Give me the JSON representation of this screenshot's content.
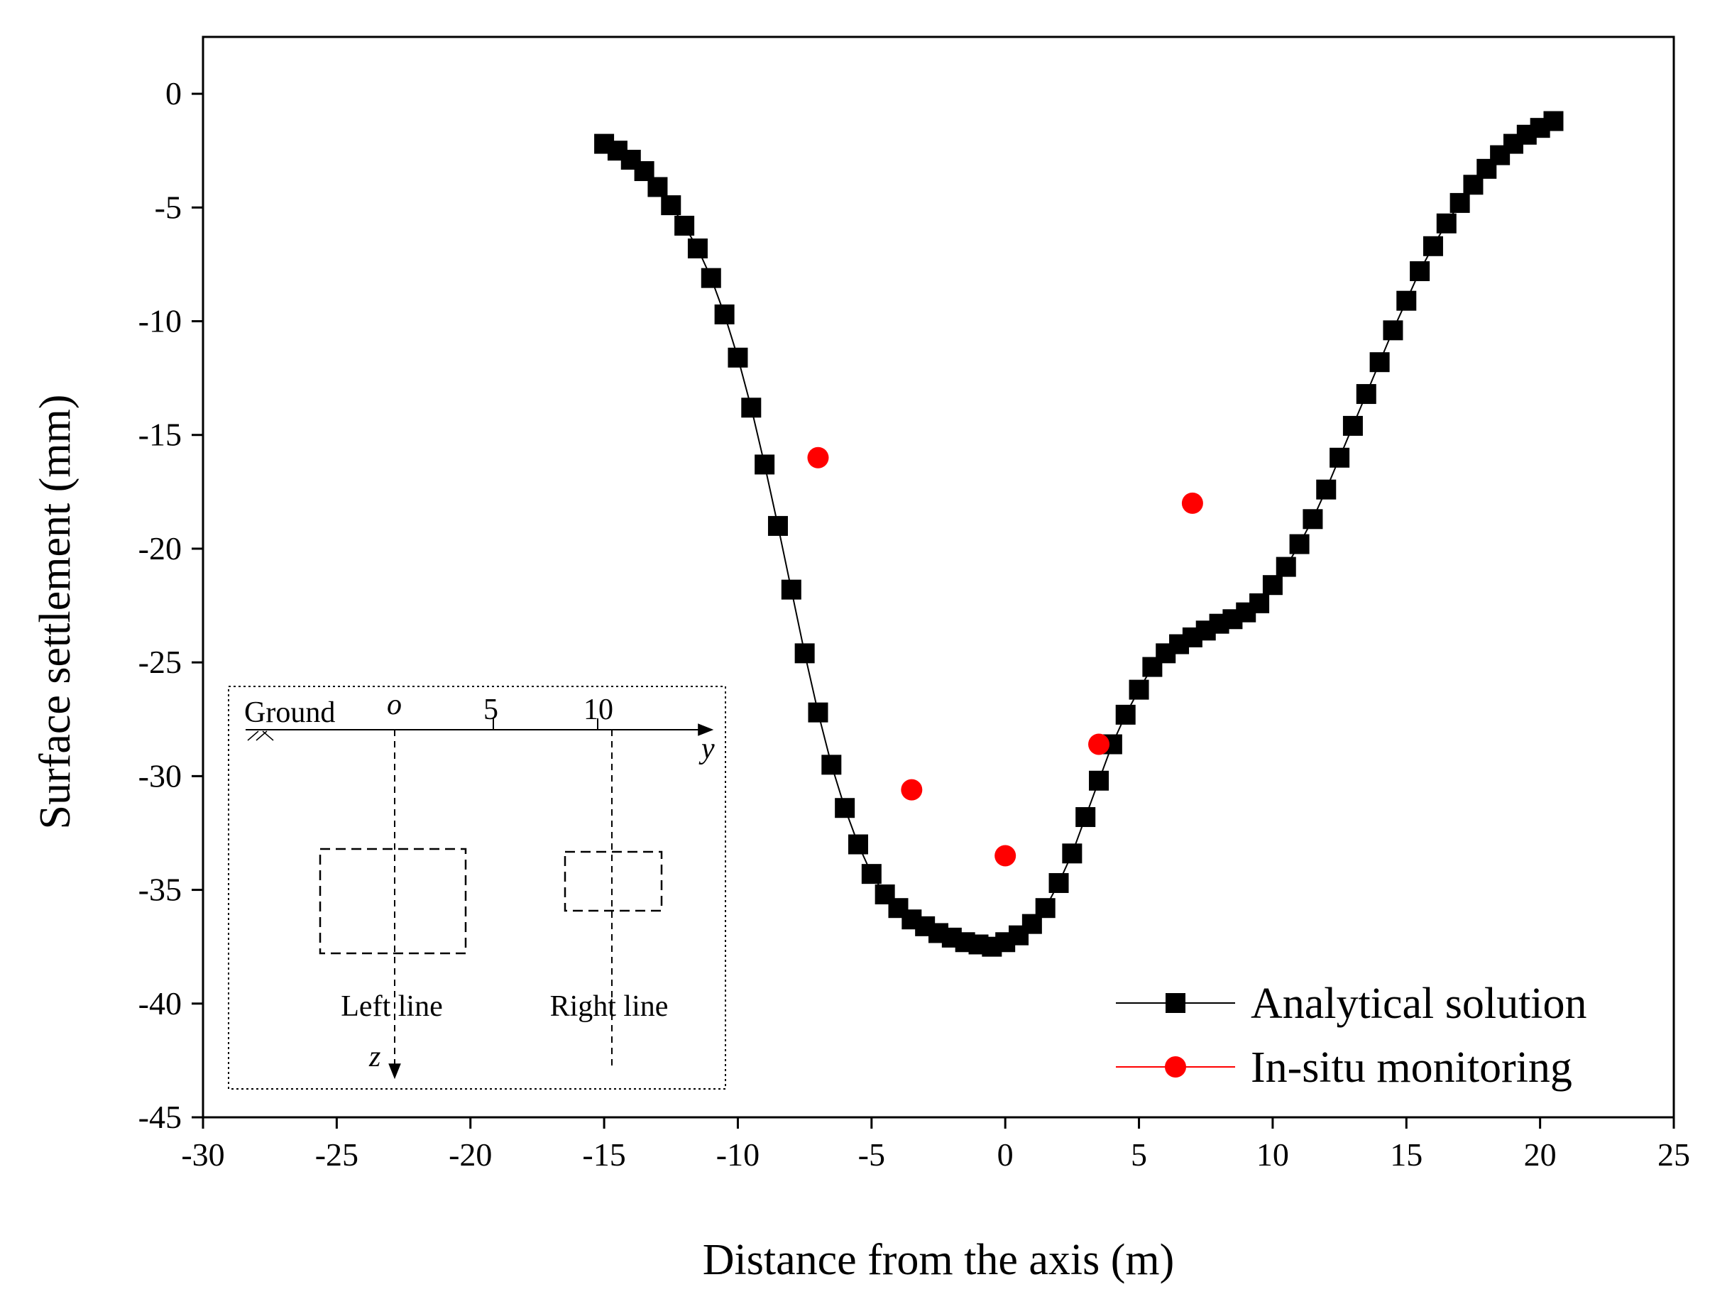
{
  "chart_data": {
    "type": "scatter",
    "title": "",
    "xlabel": "Distance from the axis (m)",
    "ylabel": "Surface settlement (mm)",
    "xlim": [
      -30,
      25
    ],
    "ylim": [
      -45,
      2.5
    ],
    "x_ticks": [
      -30,
      -25,
      -20,
      -15,
      -10,
      -5,
      0,
      5,
      10,
      15,
      20,
      25
    ],
    "y_ticks": [
      0,
      -5,
      -10,
      -15,
      -20,
      -25,
      -30,
      -35,
      -40,
      -45
    ],
    "grid": false,
    "legend_position": "bottom-right",
    "series": [
      {
        "name": "Analytical solution",
        "marker": "square",
        "line": true,
        "color": "#000000",
        "x": [
          -15.0,
          -14.5,
          -14.0,
          -13.5,
          -13.0,
          -12.5,
          -12.0,
          -11.5,
          -11.0,
          -10.5,
          -10.0,
          -9.5,
          -9.0,
          -8.5,
          -8.0,
          -7.5,
          -7.0,
          -6.5,
          -6.0,
          -5.5,
          -5.0,
          -4.5,
          -4.0,
          -3.5,
          -3.0,
          -2.5,
          -2.0,
          -1.5,
          -1.0,
          -0.5,
          0.0,
          0.5,
          1.0,
          1.5,
          2.0,
          2.5,
          3.0,
          3.5,
          4.0,
          4.5,
          5.0,
          5.5,
          6.0,
          6.5,
          7.0,
          7.5,
          8.0,
          8.5,
          9.0,
          9.5,
          10.0,
          10.5,
          11.0,
          11.5,
          12.0,
          12.5,
          13.0,
          13.5,
          14.0,
          14.5,
          15.0,
          15.5,
          16.0,
          16.5,
          17.0,
          17.5,
          18.0,
          18.5,
          19.0,
          19.5,
          20.0,
          20.5
        ],
        "y": [
          -2.2,
          -2.5,
          -2.9,
          -3.4,
          -4.1,
          -4.9,
          -5.8,
          -6.8,
          -8.1,
          -9.7,
          -11.6,
          -13.8,
          -16.3,
          -19.0,
          -21.8,
          -24.6,
          -27.2,
          -29.5,
          -31.4,
          -33.0,
          -34.3,
          -35.2,
          -35.8,
          -36.3,
          -36.6,
          -36.9,
          -37.1,
          -37.3,
          -37.4,
          -37.5,
          -37.3,
          -37.0,
          -36.5,
          -35.8,
          -34.7,
          -33.4,
          -31.8,
          -30.2,
          -28.6,
          -27.3,
          -26.2,
          -25.2,
          -24.6,
          -24.2,
          -23.9,
          -23.6,
          -23.3,
          -23.1,
          -22.8,
          -22.4,
          -21.6,
          -20.8,
          -19.8,
          -18.7,
          -17.4,
          -16.0,
          -14.6,
          -13.2,
          -11.8,
          -10.4,
          -9.1,
          -7.8,
          -6.7,
          -5.7,
          -4.8,
          -4.0,
          -3.3,
          -2.7,
          -2.2,
          -1.8,
          -1.5,
          -1.2
        ]
      },
      {
        "name": "In-situ monitoring",
        "marker": "circle",
        "line": false,
        "color": "#ff0000",
        "x": [
          -7.0,
          -3.5,
          0.0,
          3.5,
          7.0
        ],
        "y": [
          -16.0,
          -30.6,
          -33.5,
          -28.6,
          -18.0
        ]
      }
    ],
    "inset": {
      "ground_label": "Ground",
      "origin_label": "o",
      "y_axis_label": "y",
      "z_axis_label": "z",
      "tick_labels": [
        "5",
        "10"
      ],
      "left_label": "Left line",
      "right_label": "Right line"
    }
  }
}
